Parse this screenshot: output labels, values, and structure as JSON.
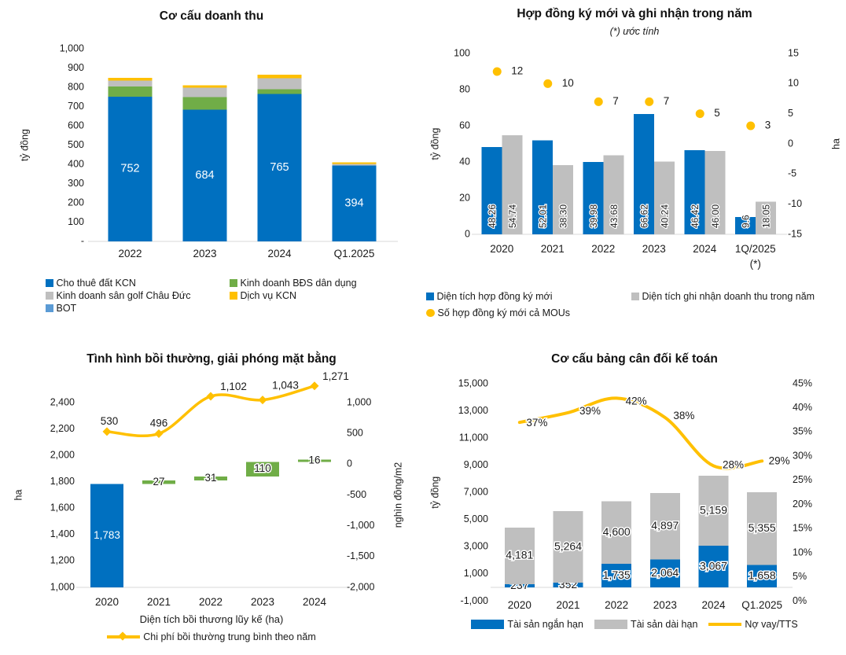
{
  "page": {
    "background": "#FFFFFF"
  },
  "colors": {
    "blue": "#0070C0",
    "green": "#70AD47",
    "gray": "#BFBFBF",
    "gold": "#FFC000",
    "light_blue": "#5B9BD5",
    "axis_line": "#D9D9D9",
    "text": "#1A1A1A"
  },
  "chart_data": [
    {
      "type": "bar",
      "stacked": true,
      "title": "Cơ cấu doanh thu",
      "left_axis": {
        "label": "tỷ đồng",
        "min": 0,
        "max": 1000,
        "tick_labels": [
          "1,000",
          "900",
          "800",
          "700",
          "600",
          "500",
          "400",
          "300",
          "200",
          "100",
          "-"
        ]
      },
      "categories": [
        "2022",
        "2023",
        "2024",
        "Q1.2025"
      ],
      "series": [
        {
          "name": "Cho thuê đất KCN",
          "color": "#0070C0",
          "values": [
            752,
            684,
            765,
            394
          ],
          "labels": [
            "752",
            "684",
            "765",
            "394"
          ],
          "label_color": "#FFFFFF"
        },
        {
          "name": "Kinh doanh BĐS dân dụng",
          "color": "#70AD47",
          "values": [
            52,
            64,
            25,
            0
          ]
        },
        {
          "name": "Kinh doanh sân golf Châu Đức",
          "color": "#BFBFBF",
          "values": [
            30,
            49,
            57,
            8
          ]
        },
        {
          "name": "Dịch vụ KCN",
          "color": "#FFC000",
          "values": [
            16,
            14,
            19,
            8
          ]
        },
        {
          "name": "BOT",
          "color": "#5B9BD5",
          "values": [
            0,
            0,
            0,
            0
          ]
        }
      ],
      "legend_position": "bottom"
    },
    {
      "type": "bar",
      "grouped": true,
      "title": "Hợp đồng ký mới và ghi nhận trong năm",
      "subtitle": "(*) ước tính",
      "left_axis": {
        "label": "tỷ đồng",
        "min": 0,
        "max": 100,
        "tick_labels": [
          "100",
          "80",
          "60",
          "40",
          "20",
          "0"
        ]
      },
      "right_axis": {
        "label": "ha",
        "min": -15,
        "max": 15,
        "tick_labels": [
          "15",
          "10",
          "5",
          "0",
          "-5",
          "-10",
          "-15"
        ]
      },
      "categories": [
        [
          "2020"
        ],
        [
          "2021"
        ],
        [
          "2022"
        ],
        [
          "2023"
        ],
        [
          "2024"
        ],
        [
          "1Q/2025",
          "(*)"
        ]
      ],
      "series": [
        {
          "name": "Diện tích hợp đồng ký mới",
          "color": "#0070C0",
          "values": [
            48.26,
            52.01,
            39.98,
            66.62,
            46.42,
            9.6
          ],
          "labels": [
            "48.26",
            "52.01",
            "39.98",
            "66.62",
            "46.42",
            "9.6"
          ]
        },
        {
          "name": "Diện tích ghi nhận doanh thu trong năm",
          "color": "#BFBFBF",
          "values": [
            54.74,
            38.3,
            43.68,
            40.24,
            46.0,
            18.05
          ],
          "labels": [
            "54.74",
            "38.30",
            "43.68",
            "40.24",
            "46.00",
            "18.05"
          ]
        }
      ],
      "scatter": {
        "name": "Số hợp đồng ký mới cả MOUs",
        "color": "#FFC000",
        "axis": "right",
        "values": [
          12,
          10,
          7,
          7,
          5,
          3
        ],
        "labels": [
          "12",
          "10",
          "7",
          "7",
          "5",
          "3"
        ]
      },
      "legend_position": "bottom"
    },
    {
      "type": "bar",
      "waterfall": true,
      "title": "Tình hình bồi thường, giải phóng mặt bằng",
      "left_axis": {
        "label": "ha",
        "min": 1000,
        "max": 2400,
        "tick_labels": [
          "2,400",
          "2,200",
          "2,000",
          "1,800",
          "1,600",
          "1,400",
          "1,200",
          "1,000"
        ]
      },
      "right_axis": {
        "label": "nghìn đồng/m2",
        "min": -2000,
        "max": 1000,
        "tick_labels": [
          "1,000",
          "500",
          "0",
          "-500",
          "-1,000",
          "-1,500",
          "-2,000"
        ]
      },
      "categories": [
        "2020",
        "2021",
        "2022",
        "2023",
        "2024"
      ],
      "xlabel": "Diện tích bồi thương lũy kế (ha)",
      "bars": [
        {
          "from": 0,
          "to": 1783,
          "color": "#0070C0",
          "label": "1,783",
          "label_color": "#FFFFFF"
        },
        {
          "from": 1783,
          "to": 1810,
          "color": "#70AD47",
          "label": "27"
        },
        {
          "from": 1810,
          "to": 1841,
          "color": "#70AD47",
          "label": "31"
        },
        {
          "from": 1841,
          "to": 1951,
          "color": "#70AD47",
          "label": "110"
        },
        {
          "from": 1951,
          "to": 1967,
          "color": "#70AD47",
          "label": "16"
        }
      ],
      "line": {
        "name": "Chi phí bồi thường trung bình theo năm",
        "color": "#FFC000",
        "axis": "right",
        "marker": "diamond",
        "values": [
          530,
          496,
          1102,
          1043,
          1271
        ],
        "labels": [
          "530",
          "496",
          "1,102",
          "1,043",
          "1,271"
        ]
      },
      "legend_position": "bottom"
    },
    {
      "type": "bar",
      "stacked": true,
      "title": "Cơ cấu bảng cân đối kế toán",
      "left_axis": {
        "label": "tỷ đồng",
        "min": -1000,
        "max": 15000,
        "tick_labels": [
          "15,000",
          "13,000",
          "11,000",
          "9,000",
          "7,000",
          "5,000",
          "3,000",
          "1,000",
          "-1,000"
        ]
      },
      "right_axis": {
        "min": 0,
        "max": 45,
        "tick_labels": [
          "45%",
          "40%",
          "35%",
          "30%",
          "25%",
          "20%",
          "15%",
          "10%",
          "5%",
          "0%"
        ]
      },
      "categories": [
        "2020",
        "2021",
        "2022",
        "2023",
        "2024",
        "Q1.2025"
      ],
      "series": [
        {
          "name": "Tài sản ngắn hạn",
          "color": "#0070C0",
          "values": [
            237,
            352,
            1735,
            2064,
            3067,
            1658
          ],
          "labels": [
            "237",
            "352",
            "1,735",
            "2,064",
            "3,067",
            "1,658"
          ]
        },
        {
          "name": "Tài sản dài hạn",
          "color": "#BFBFBF",
          "values": [
            4181,
            5264,
            4600,
            4897,
            5159,
            5355
          ],
          "labels": [
            "4,181",
            "5,264",
            "4,600",
            "4,897",
            "5,159",
            "5,355"
          ]
        }
      ],
      "line": {
        "name": "Nợ vay/TTS",
        "color": "#FFC000",
        "axis": "right",
        "values": [
          37,
          39,
          42,
          38,
          28,
          29
        ],
        "labels": [
          "37%",
          "39%",
          "42%",
          "38%",
          "28%",
          "29%"
        ]
      },
      "legend_position": "bottom"
    }
  ]
}
